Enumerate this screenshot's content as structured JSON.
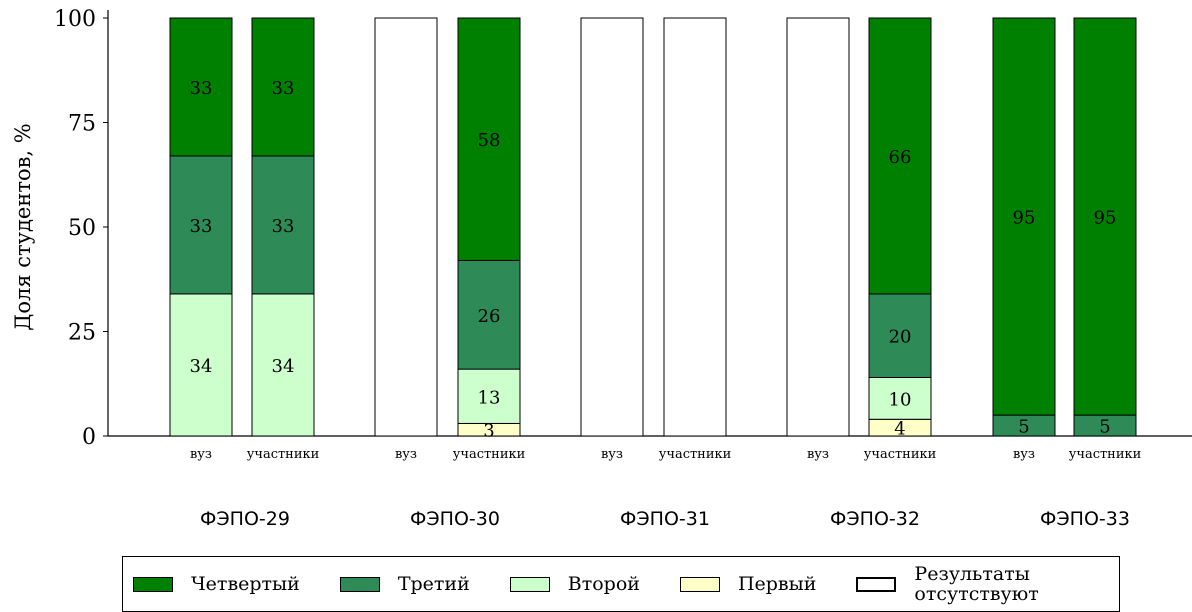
{
  "chart_data": {
    "type": "bar",
    "stacked": true,
    "ylabel": "Доля студентов, %",
    "ylim": [
      0,
      100
    ],
    "yticks": [
      0,
      25,
      50,
      75,
      100
    ],
    "groups": [
      "ФЭПО-29",
      "ФЭПО-30",
      "ФЭПО-31",
      "ФЭПО-32",
      "ФЭПО-33"
    ],
    "sub_categories": [
      "вуз",
      "участники"
    ],
    "series": [
      {
        "name": "Первый",
        "color": "#ffffc8",
        "values": [
          0,
          0,
          0,
          3,
          0,
          0,
          0,
          4,
          0,
          0
        ]
      },
      {
        "name": "Второй",
        "color": "#ccffcc",
        "values": [
          34,
          34,
          0,
          13,
          0,
          0,
          0,
          10,
          0,
          0
        ]
      },
      {
        "name": "Третий",
        "color": "#2e8b57",
        "values": [
          33,
          33,
          0,
          26,
          0,
          0,
          0,
          20,
          5,
          5
        ]
      },
      {
        "name": "Четвертый",
        "color": "#008000",
        "values": [
          33,
          33,
          0,
          58,
          0,
          0,
          0,
          66,
          95,
          95
        ]
      }
    ],
    "missing": [
      false,
      false,
      true,
      false,
      true,
      true,
      true,
      false,
      false,
      false
    ],
    "bar_labels": [
      [
        "",
        "34",
        "33",
        "33"
      ],
      [
        "",
        "34",
        "33",
        "33"
      ],
      [
        "",
        "",
        "",
        ""
      ],
      [
        "3",
        "13",
        "26",
        "58"
      ],
      [
        "",
        "",
        "",
        ""
      ],
      [
        "",
        "",
        "",
        ""
      ],
      [
        "",
        "",
        "",
        ""
      ],
      [
        "4",
        "10",
        "20",
        "66"
      ],
      [
        "",
        "",
        "5",
        "95"
      ],
      [
        "",
        "",
        "5",
        "95"
      ]
    ],
    "legend": {
      "items": [
        {
          "label": "Четвертый",
          "color": "#008000"
        },
        {
          "label": "Третий",
          "color": "#2e8b57"
        },
        {
          "label": "Второй",
          "color": "#ccffcc"
        },
        {
          "label": "Первый",
          "color": "#ffffc8"
        }
      ],
      "missing_label_line1": "Результаты",
      "missing_label_line2": "отсутствуют"
    }
  }
}
